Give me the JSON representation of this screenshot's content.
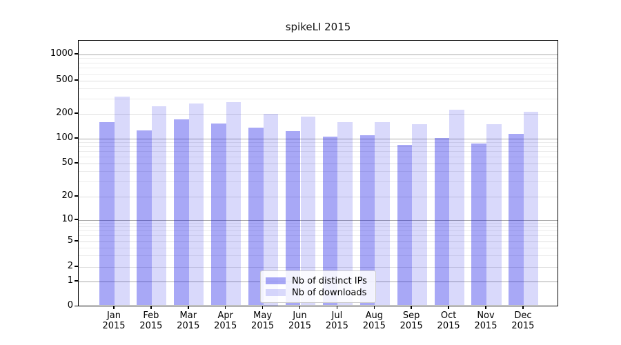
{
  "title": "spikeLI 2015",
  "chart_data": {
    "type": "bar",
    "title": "spikeLI 2015",
    "x_months": [
      "Jan",
      "Feb",
      "Mar",
      "Apr",
      "May",
      "Jun",
      "Jul",
      "Aug",
      "Sep",
      "Oct",
      "Nov",
      "Dec"
    ],
    "x_year": "2015",
    "series": [
      {
        "name": "Nb of distinct IPs",
        "key": "distinct_ips",
        "values": [
          160,
          125,
          172,
          153,
          135,
          123,
          105,
          110,
          84,
          101,
          87,
          115
        ]
      },
      {
        "name": "Nb of downloads",
        "key": "downloads",
        "values": [
          320,
          245,
          265,
          275,
          200,
          185,
          160,
          158,
          150,
          225,
          150,
          210
        ]
      }
    ],
    "yscale": "log-with-zero-baseline",
    "ytick_labels": [
      1000,
      500,
      200,
      100,
      50,
      20,
      10,
      5,
      2,
      1,
      0
    ],
    "y_major_gridlines": [
      1,
      10,
      100,
      1000
    ],
    "y_labeled_gridlines": [
      2,
      5,
      20,
      50,
      200,
      500
    ],
    "y_minor_gridlines": [
      3,
      4,
      6,
      7,
      8,
      9,
      30,
      40,
      60,
      70,
      80,
      90,
      300,
      400,
      600,
      700,
      800,
      900
    ],
    "ylim": [
      0,
      1500
    ],
    "grid": "horizontal",
    "legend_position": "lower center"
  },
  "legend": {
    "items": [
      "Nb of distinct IPs",
      "Nb of downloads"
    ]
  },
  "colors": {
    "bar_distinct_ips": "rgba(0,0,230,0.34)",
    "bar_downloads": "rgba(0,0,230,0.15)",
    "grid_major": "#a9a9a9",
    "grid_labeled": "#dedede",
    "grid_minor": "#ececec",
    "axis_frame": "#000000",
    "background": "#ffffff"
  }
}
